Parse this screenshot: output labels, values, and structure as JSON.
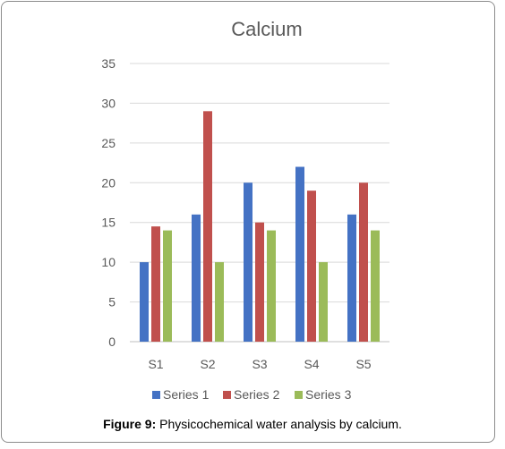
{
  "chart_data": {
    "type": "bar",
    "title": "Calcium",
    "categories": [
      "S1",
      "S2",
      "S3",
      "S4",
      "S5"
    ],
    "series": [
      {
        "name": "Series 1",
        "color": "#4472C4",
        "values": [
          10,
          16,
          20,
          22,
          16
        ]
      },
      {
        "name": "Series 2",
        "color": "#C0504D",
        "values": [
          14.5,
          29,
          15,
          19,
          20
        ]
      },
      {
        "name": "Series 3",
        "color": "#9BBB59",
        "values": [
          14,
          10,
          14,
          10,
          14
        ]
      }
    ],
    "ylim": [
      0,
      35
    ],
    "yticks": [
      0,
      5,
      10,
      15,
      20,
      25,
      30,
      35
    ],
    "grid": true,
    "legend_position": "bottom"
  },
  "caption": {
    "label": "Figure 9:",
    "text": " Physicochemical water analysis by calcium."
  }
}
